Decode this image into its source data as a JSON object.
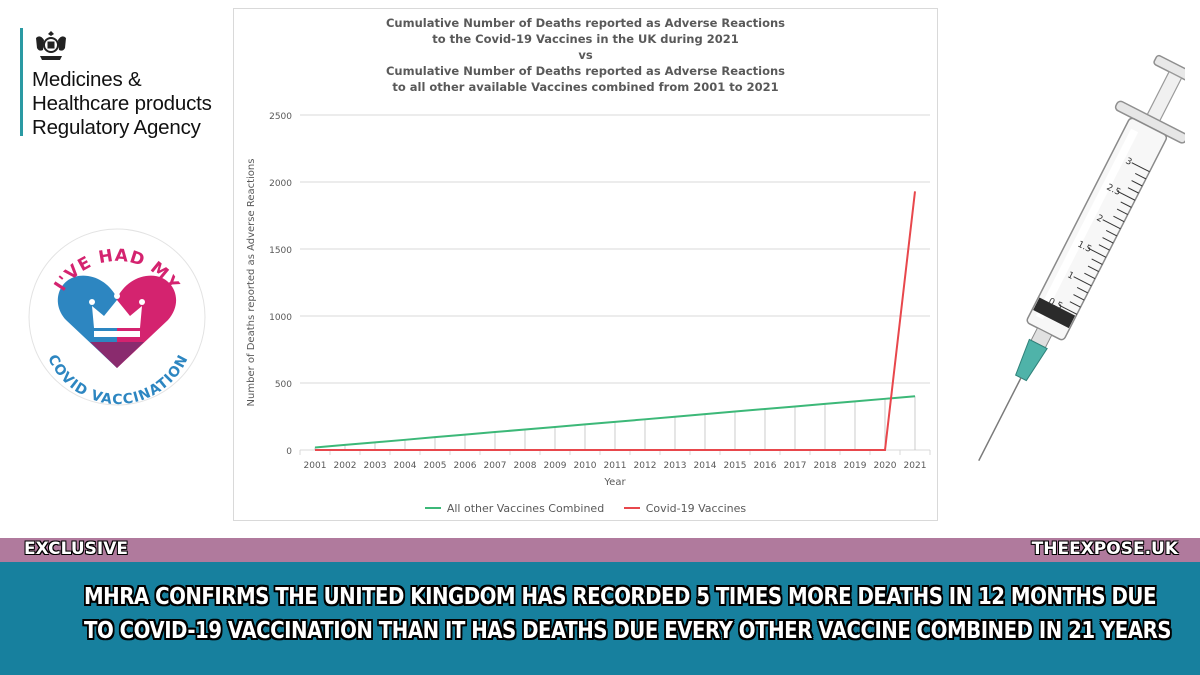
{
  "logo": {
    "name_lines": [
      "Medicines &",
      "Healthcare products",
      "Regulatory Agency"
    ],
    "brand_color": "#2a9aa3",
    "icon": "royal-crest-icon"
  },
  "badge": {
    "top_text": "I'VE HAD MY",
    "bottom_text": "COVID VACCINATION",
    "colors": {
      "pink": "#d4236f",
      "blue": "#2d86c1",
      "purple": "#8a2b6e"
    }
  },
  "chart_data": {
    "type": "line",
    "title_lines": [
      "Cumulative Number of Deaths reported as Adverse Reactions",
      "to the Covid-19 Vaccines in the UK during 2021",
      "vs",
      "Cumulative Number of Deaths reported as Adverse Reactions",
      "to all other available Vaccines combined from 2001 to 2021"
    ],
    "xlabel": "Year",
    "ylabel": "Number of Deaths reported as Adverse Reactions",
    "categories": [
      "2001",
      "2002",
      "2003",
      "2004",
      "2005",
      "2006",
      "2007",
      "2008",
      "2009",
      "2010",
      "2011",
      "2012",
      "2013",
      "2014",
      "2015",
      "2016",
      "2017",
      "2018",
      "2019",
      "2020",
      "2021"
    ],
    "ylim": [
      0,
      2500
    ],
    "yticks": [
      0,
      500,
      1000,
      1500,
      2000,
      2500
    ],
    "grid": true,
    "legend_position": "bottom",
    "series": [
      {
        "name": "All other Vaccines Combined",
        "color": "#3cb878",
        "values": [
          19,
          38,
          57,
          76,
          96,
          115,
          134,
          153,
          172,
          191,
          210,
          229,
          248,
          268,
          287,
          306,
          325,
          344,
          363,
          382,
          401
        ]
      },
      {
        "name": "Covid-19 Vaccines",
        "color": "#e8474c",
        "values": [
          0,
          0,
          0,
          0,
          0,
          0,
          0,
          0,
          0,
          0,
          0,
          0,
          0,
          0,
          0,
          0,
          0,
          0,
          0,
          0,
          1930
        ]
      }
    ]
  },
  "banner": {
    "tag": "EXCLUSIVE",
    "site": "THEEXPOSE.UK",
    "headline_lines": [
      "MHRA CONFIRMS THE UNITED KINGDOM HAS RECORDED 5 TIMES MORE DEATHS IN 12 MONTHS DUE",
      "TO COVID-19 VACCINATION THAN IT HAS DEATHS DUE EVERY OTHER VACCINE COMBINED IN 21 YEARS"
    ],
    "strip_color": "#b07a9d",
    "headline_bg": "#17809e"
  },
  "syringe": {
    "scale_labels": [
      "3",
      "2.5",
      "2",
      "1.5",
      "1",
      "0.5"
    ],
    "icon": "syringe-icon"
  }
}
